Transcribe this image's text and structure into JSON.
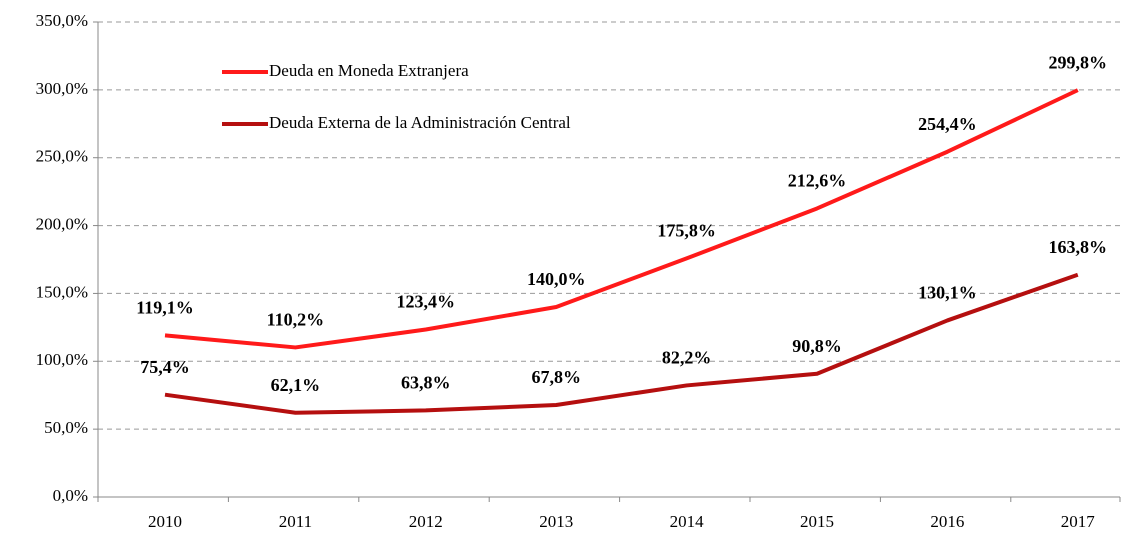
{
  "chart_data": {
    "type": "line",
    "categories": [
      "2010",
      "2011",
      "2012",
      "2013",
      "2014",
      "2015",
      "2016",
      "2017"
    ],
    "series": [
      {
        "name": "Deuda en Moneda Extranjera",
        "color": "#ff1a1a",
        "values": [
          119.1,
          110.2,
          123.4,
          140.0,
          175.8,
          212.6,
          254.4,
          299.8
        ],
        "value_labels": [
          "119,1%",
          "110,2%",
          "123,4%",
          "140,0%",
          "175,8%",
          "212,6%",
          "254,4%",
          "299,8%"
        ]
      },
      {
        "name": "Deuda Externa de la Administración Central",
        "color": "#b50f0f",
        "values": [
          75.4,
          62.1,
          63.8,
          67.8,
          82.2,
          90.8,
          130.1,
          163.8
        ],
        "value_labels": [
          "75,4%",
          "62,1%",
          "63,8%",
          "67,8%",
          "82,2%",
          "90,8%",
          "130,1%",
          "163,8%"
        ]
      }
    ],
    "ylim": [
      0,
      350
    ],
    "yticks": [
      {
        "value": 0,
        "label": "0,0%"
      },
      {
        "value": 50,
        "label": "50,0%"
      },
      {
        "value": 100,
        "label": "100,0%"
      },
      {
        "value": 150,
        "label": "150,0%"
      },
      {
        "value": 200,
        "label": "200,0%"
      },
      {
        "value": 250,
        "label": "250,0%"
      },
      {
        "value": 300,
        "label": "300,0%"
      },
      {
        "value": 350,
        "label": "350,0%"
      }
    ],
    "grid": true,
    "legend": "upper left"
  }
}
